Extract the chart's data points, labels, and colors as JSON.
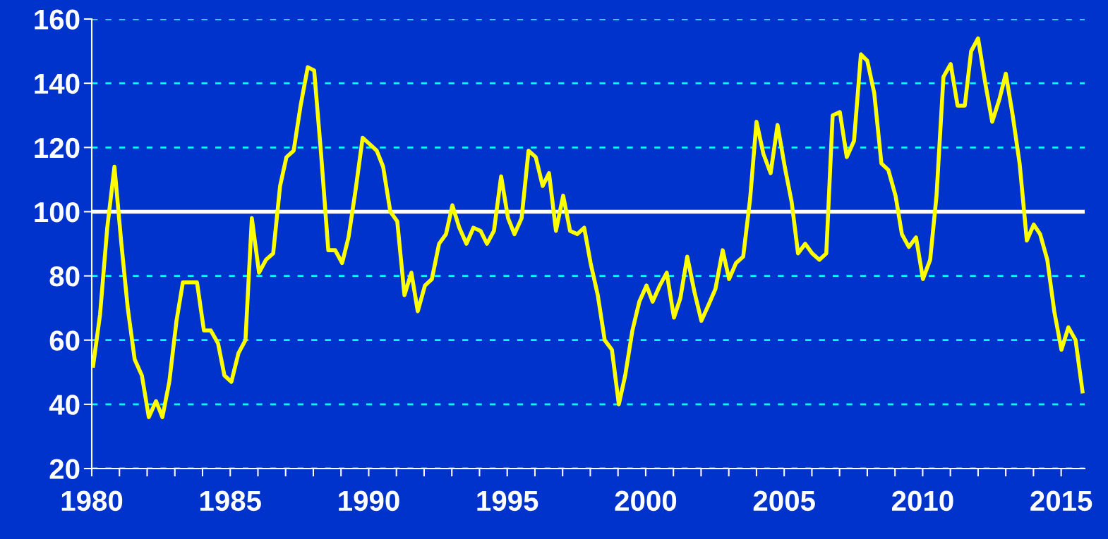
{
  "chart_data": {
    "type": "line",
    "x": [
      1980.05,
      1980.3,
      1980.56,
      1980.82,
      1981.07,
      1981.3,
      1981.55,
      1981.81,
      1982.06,
      1982.32,
      1982.55,
      1982.8,
      1983.06,
      1983.29,
      1983.54,
      1983.8,
      1984.05,
      1984.3,
      1984.56,
      1984.79,
      1985.04,
      1985.3,
      1985.55,
      1985.78,
      1986.04,
      1986.29,
      1986.55,
      1986.8,
      1987.03,
      1987.29,
      1987.54,
      1987.8,
      1988.03,
      1988.28,
      1988.54,
      1988.79,
      1989.04,
      1989.27,
      1989.53,
      1989.78,
      1990.04,
      1990.29,
      1990.52,
      1990.78,
      1991.03,
      1991.29,
      1991.54,
      1991.77,
      1992.03,
      1992.28,
      1992.54,
      1992.79,
      1993.02,
      1993.27,
      1993.53,
      1993.78,
      1994.04,
      1994.27,
      1994.52,
      1994.78,
      1995.03,
      1995.26,
      1995.52,
      1995.77,
      1996.03,
      1996.28,
      1996.51,
      1996.76,
      1997.02,
      1997.27,
      1997.53,
      1997.78,
      1998.01,
      1998.27,
      1998.52,
      1998.78,
      1999.03,
      1999.26,
      1999.52,
      1999.77,
      2000.03,
      2000.25,
      2000.51,
      2000.76,
      2001.02,
      2001.25,
      2001.5,
      2001.76,
      2002.01,
      2002.27,
      2002.52,
      2002.78,
      2003.01,
      2003.26,
      2003.52,
      2003.77,
      2004.0,
      2004.25,
      2004.51,
      2004.76,
      2005.02,
      2005.27,
      2005.5,
      2005.76,
      2006.01,
      2006.27,
      2006.52,
      2006.75,
      2007.01,
      2007.26,
      2007.52,
      2007.77,
      2008.0,
      2008.25,
      2008.51,
      2008.76,
      2009.02,
      2009.25,
      2009.5,
      2009.76,
      2010.01,
      2010.27,
      2010.5,
      2010.75,
      2011.01,
      2011.26,
      2011.52,
      2011.75,
      2012.0,
      2012.26,
      2012.51,
      2012.77,
      2013.0,
      2013.25,
      2013.5,
      2013.76,
      2014.01,
      2014.24,
      2014.5,
      2014.75,
      2015.01,
      2015.26,
      2015.52,
      2015.77
    ],
    "series": [
      {
        "color": "#ffff00",
        "values": [
          52,
          68,
          95,
          114,
          90,
          70,
          54,
          49,
          36,
          41,
          36,
          47,
          66,
          78,
          78,
          78,
          63,
          63,
          59,
          49,
          47,
          56,
          60,
          98,
          81,
          85,
          87,
          108,
          117,
          119,
          133,
          145,
          144,
          118,
          88,
          88,
          84,
          92,
          107,
          123,
          121,
          119,
          114,
          100,
          97,
          74,
          81,
          69,
          77,
          79,
          90,
          93,
          102,
          95,
          90,
          95,
          94,
          90,
          94,
          111,
          98,
          93,
          98,
          119,
          117,
          108,
          112,
          94,
          105,
          94,
          93,
          95,
          84,
          74,
          60,
          57,
          40,
          49,
          63,
          72,
          77,
          72,
          77,
          81,
          67,
          73,
          86,
          75,
          66,
          71,
          76,
          88,
          79,
          84,
          86,
          104,
          128,
          118,
          112,
          127,
          114,
          103,
          87,
          90,
          87,
          85,
          87,
          130,
          131,
          117,
          122,
          149,
          147,
          137,
          115,
          113,
          105,
          93,
          89,
          92,
          79,
          85,
          105,
          142,
          146,
          133,
          133,
          150,
          154,
          140,
          128,
          135,
          143,
          130,
          115,
          91,
          96,
          93,
          85,
          69,
          57,
          64,
          60,
          44
        ]
      }
    ],
    "xlim": [
      1980,
      2015.85
    ],
    "xticks": [
      1980,
      {
        "value": 1981,
        "label": null
      },
      {
        "value": 1982,
        "label": null
      },
      {
        "value": 1983,
        "label": null
      },
      {
        "value": 1984,
        "label": null
      },
      1985,
      {
        "value": 1986,
        "label": null
      },
      {
        "value": 1987,
        "label": null
      },
      {
        "value": 1988,
        "label": null
      },
      {
        "value": 1989,
        "label": null
      },
      1990,
      {
        "value": 1991,
        "label": null
      },
      {
        "value": 1992,
        "label": null
      },
      {
        "value": 1993,
        "label": null
      },
      {
        "value": 1994,
        "label": null
      },
      1995,
      {
        "value": 1996,
        "label": null
      },
      {
        "value": 1997,
        "label": null
      },
      {
        "value": 1998,
        "label": null
      },
      {
        "value": 1999,
        "label": null
      },
      2000,
      {
        "value": 2001,
        "label": null
      },
      {
        "value": 2002,
        "label": null
      },
      {
        "value": 2003,
        "label": null
      },
      {
        "value": 2004,
        "label": null
      },
      2005,
      {
        "value": 2006,
        "label": null
      },
      {
        "value": 2007,
        "label": null
      },
      {
        "value": 2008,
        "label": null
      },
      {
        "value": 2009,
        "label": null
      },
      2010,
      {
        "value": 2011,
        "label": null
      },
      {
        "value": 2012,
        "label": null
      },
      {
        "value": 2013,
        "label": null
      },
      {
        "value": 2014,
        "label": null
      },
      2015
    ],
    "ylim": [
      20,
      160
    ],
    "yticks": [
      20,
      40,
      60,
      80,
      100,
      120,
      140,
      160
    ],
    "grid": "y",
    "ref_lines": [
      {
        "axis": "y",
        "value": 100,
        "color": "#ffffff"
      }
    ],
    "marker": "none",
    "line_style": "solid"
  }
}
